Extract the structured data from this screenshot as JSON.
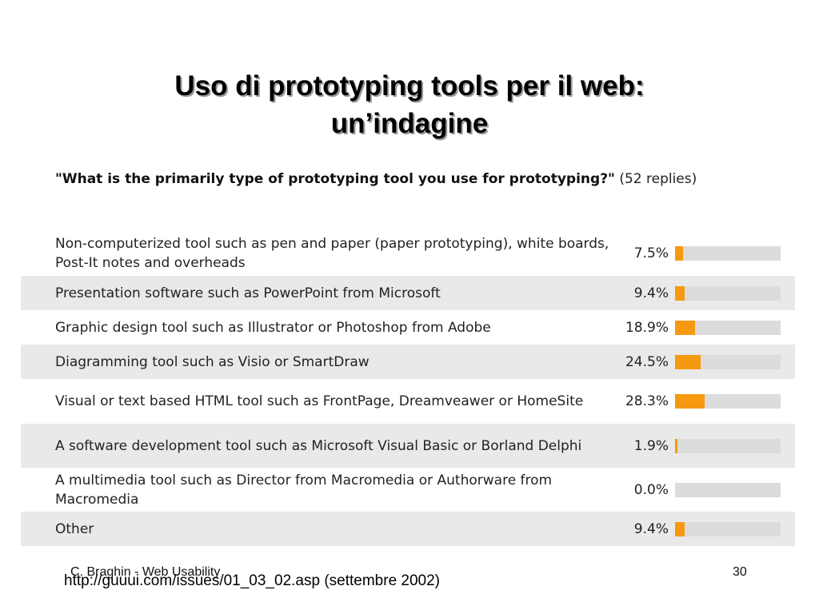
{
  "slide": {
    "title_line1": "Uso di prototyping tools per il web:",
    "title_line2": "un’indagine",
    "footer_left": "C. Braghin - Web Usability",
    "source": "http://guuui.com/issues/01_03_02.asp (settembre 2002)",
    "page_number": "30"
  },
  "chart_data": {
    "type": "bar",
    "title": "\"What is the primarily type of prototyping tool you use for prototyping?\"",
    "subtitle": "(52 replies)",
    "orientation": "horizontal",
    "xlim": [
      0,
      100
    ],
    "bar_color": "#f59a10",
    "track_color": "#dcdcdc",
    "row_shade_color": "#e9e9e9",
    "categories": [
      "Non-computerized tool such as pen and paper (paper prototyping), white boards, Post-It notes and overheads",
      "Presentation software such as PowerPoint from Microsoft",
      "Graphic design tool such as Illustrator or Photoshop from Adobe",
      "Diagramming tool such as Visio or SmartDraw",
      "Visual or text based HTML tool such as FrontPage, Dreamveawer or HomeSite",
      "A software development tool such as Microsoft Visual Basic or Borland Delphi",
      "A multimedia tool such as Director from Macromedia or Authorware from Macromedia",
      "Other"
    ],
    "values": [
      7.5,
      9.4,
      18.9,
      24.5,
      28.3,
      1.9,
      0.0,
      9.4
    ],
    "value_labels": [
      "7.5%",
      "9.4%",
      "18.9%",
      "24.5%",
      "28.3%",
      "1.9%",
      "0.0%",
      "9.4%"
    ]
  }
}
